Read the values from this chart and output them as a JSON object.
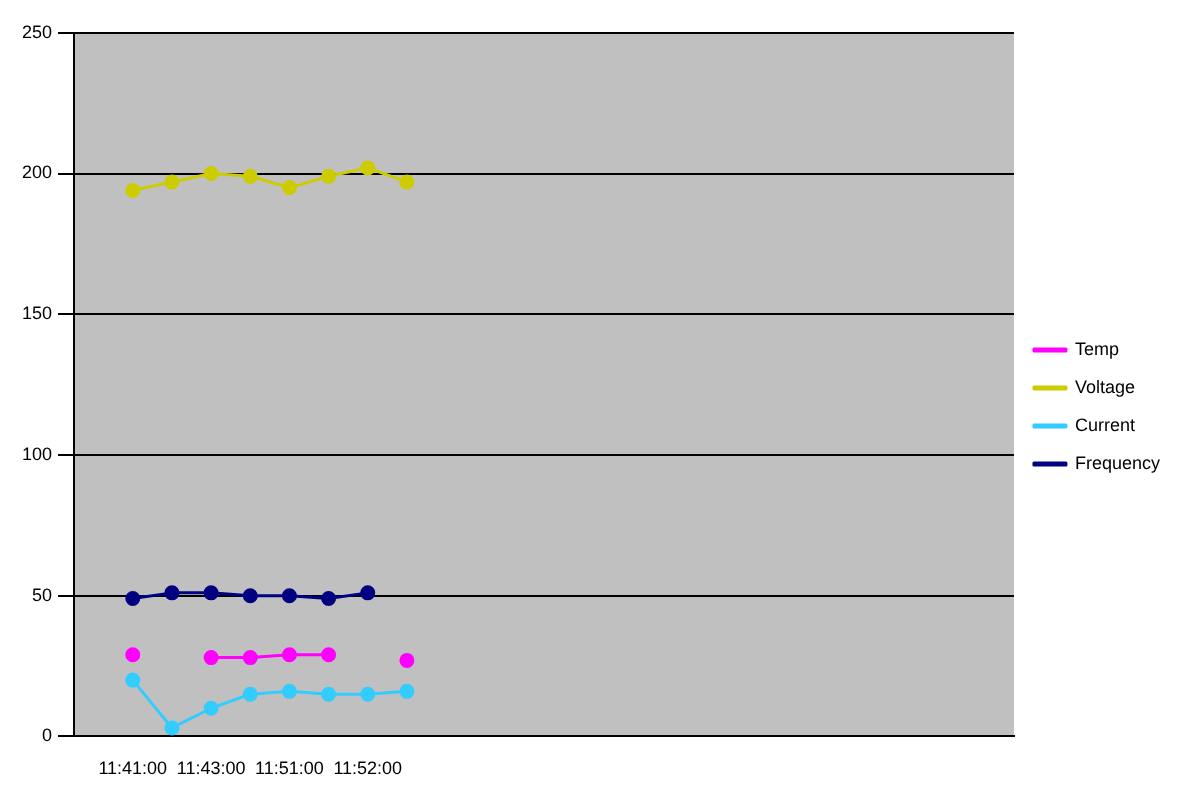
{
  "chart_data": {
    "type": "line",
    "categories": [
      null,
      "11:41:00",
      null,
      "11:43:00",
      null,
      "11:51:00",
      null,
      "11:52:00",
      null,
      null,
      null,
      null,
      null,
      null,
      null,
      null,
      null,
      null,
      null,
      null,
      null,
      null,
      null,
      null
    ],
    "series": [
      {
        "name": "Temp",
        "color": "#ff00ff",
        "values": [
          null,
          29,
          null,
          28,
          28,
          29,
          29,
          null,
          27,
          null,
          null,
          null,
          null,
          null,
          null,
          null,
          null,
          null,
          null,
          null,
          null,
          null,
          null,
          null
        ]
      },
      {
        "name": "Voltage",
        "color": "#cccc00",
        "values": [
          null,
          194,
          197,
          200,
          199,
          195,
          199,
          202,
          197,
          null,
          null,
          null,
          null,
          null,
          null,
          null,
          null,
          null,
          null,
          null,
          null,
          null,
          null,
          null
        ]
      },
      {
        "name": "Current",
        "color": "#33ccff",
        "values": [
          null,
          20,
          3,
          10,
          15,
          16,
          15,
          15,
          16,
          null,
          null,
          null,
          null,
          null,
          null,
          null,
          null,
          null,
          null,
          null,
          null,
          null,
          null,
          null
        ]
      },
      {
        "name": "Frequency",
        "color": "#000080",
        "values": [
          null,
          49,
          51,
          51,
          50,
          50,
          49,
          51,
          null,
          null,
          null,
          null,
          null,
          null,
          null,
          null,
          null,
          null,
          null,
          null,
          null,
          null,
          null,
          null
        ]
      }
    ],
    "ylim": [
      0,
      250
    ],
    "yticks": [
      0,
      50,
      100,
      150,
      200,
      250
    ],
    "grid": "y",
    "legend": "right",
    "marker": "circle"
  }
}
